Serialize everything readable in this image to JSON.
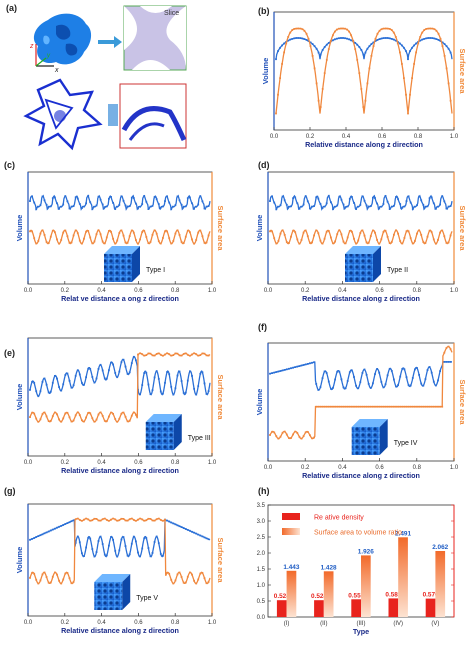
{
  "colors": {
    "volume": "#2a6fd6",
    "surface": "#f0883e",
    "density_bar": "#e8231d",
    "ratio_bar": "#f7a87a",
    "axis_blue": "#1f4fb8",
    "axis_orange": "#f08a3a"
  },
  "panel_a": {
    "label": "(a)",
    "slice_label": "Slice",
    "axis_z": "z",
    "axis_y": "y",
    "axis_x": "x"
  },
  "common": {
    "ylabel_left": "Volume",
    "ylabel_right": "Surface area"
  },
  "chart_data": [
    {
      "id": "b",
      "label": "(b)",
      "type": "line",
      "xlabel": "Relative distance along z direction",
      "xticks": [
        "0.0",
        "0.2",
        "0.4",
        "0.6",
        "0.8",
        "1.0"
      ],
      "xlim": [
        0,
        1
      ],
      "series": [
        {
          "name": "Volume",
          "pattern": "periodic-dome",
          "periods": 4
        },
        {
          "name": "Surface area",
          "pattern": "periodic-valley",
          "periods": 4
        }
      ]
    },
    {
      "id": "c",
      "label": "(c)",
      "type": "line",
      "inset": "Type I",
      "xlabel": "Relat ve distance a ong z direction",
      "xticks": [
        "0.0",
        "0.2",
        "0.4",
        "0.6",
        "0.8",
        "1.0"
      ],
      "xlim": [
        0,
        1
      ],
      "series": [
        {
          "name": "Volume",
          "pattern": "high-frequency",
          "periods": 16
        },
        {
          "name": "Surface area",
          "pattern": "high-frequency",
          "periods": 16
        }
      ]
    },
    {
      "id": "d",
      "label": "(d)",
      "type": "line",
      "inset": "Type II",
      "xlabel": "Relative distance along z direction",
      "xticks": [
        "0.0",
        "0.2",
        "0.4",
        "0.6",
        "0.8",
        "1.0"
      ],
      "xlim": [
        0,
        1
      ],
      "series": [
        {
          "name": "Volume",
          "pattern": "high-frequency",
          "periods": 16
        },
        {
          "name": "Surface area",
          "pattern": "high-frequency",
          "periods": 16
        }
      ]
    },
    {
      "id": "e",
      "label": "(e)",
      "type": "line",
      "inset": "Type III",
      "xlabel": "Relative distance along z direction",
      "xticks": [
        "0.0",
        "0.2",
        "0.4",
        "0.6",
        "0.8",
        "1.0"
      ],
      "xlim": [
        0,
        1
      ],
      "step_at": 0.6,
      "series": [
        {
          "name": "Volume",
          "pattern": "ramp-then-oscillate"
        },
        {
          "name": "Surface area",
          "pattern": "low-then-high"
        }
      ]
    },
    {
      "id": "f",
      "label": "(f)",
      "type": "line",
      "inset": "Type IV",
      "xlabel": "Relative distance along z direction",
      "xticks": [
        "0.0",
        "0.2",
        "0.4",
        "0.6",
        "0.8",
        "1.0"
      ],
      "xlim": [
        0,
        1
      ],
      "step_at": [
        0.25,
        0.95
      ],
      "series": [
        {
          "name": "Volume",
          "pattern": "two-step"
        },
        {
          "name": "Surface area",
          "pattern": "two-step"
        }
      ]
    },
    {
      "id": "g",
      "label": "(g)",
      "type": "line",
      "inset": "Type V",
      "xlabel": "Relative distance along z direction",
      "xticks": [
        "0.0",
        "0.2",
        "0.4",
        "0.6",
        "0.8",
        "1.0"
      ],
      "xlim": [
        0,
        1
      ],
      "step_at": [
        0.25,
        0.75
      ],
      "series": [
        {
          "name": "Volume",
          "pattern": "middle-oscillate"
        },
        {
          "name": "Surface area",
          "pattern": "middle-plateau"
        }
      ]
    },
    {
      "id": "h",
      "label": "(h)",
      "type": "bar",
      "xlabel": "Type",
      "categories": [
        "(I)",
        "(II)",
        "(III)",
        "(IV)",
        "(V)"
      ],
      "ylim": [
        0,
        3.5
      ],
      "yticks": [
        "0.0",
        "0.5",
        "1.0",
        "1.5",
        "2.0",
        "2.5",
        "3.0",
        "3.5"
      ],
      "series": [
        {
          "name": "Re ative density",
          "values": [
            0.524,
            0.524,
            0.552,
            0.581,
            0.576
          ]
        },
        {
          "name": "Surface area to volume ratio",
          "values": [
            1.443,
            1.428,
            1.926,
            2.491,
            2.062
          ]
        }
      ]
    }
  ]
}
